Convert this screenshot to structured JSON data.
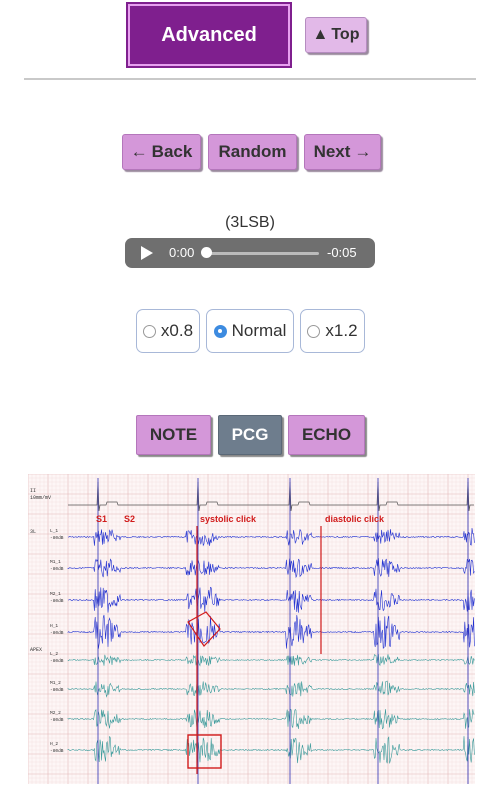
{
  "header": {
    "advanced_label": "Advanced",
    "top_label": "Top",
    "top_icon": "triangle-up-icon"
  },
  "nav": {
    "back_label": "Back",
    "random_label": "Random",
    "next_label": "Next"
  },
  "track": {
    "label": "(3LSB)",
    "time_current": "0:00",
    "time_remaining": "-0:05"
  },
  "speed": {
    "options": [
      "x0.8",
      "Normal",
      "x1.2"
    ],
    "selected": "Normal"
  },
  "tabs": [
    "NOTE",
    "PCG",
    "ECHO"
  ],
  "pcg": {
    "ecg_scale": [
      "II",
      "10mm/mV"
    ],
    "group_labels": [
      "3L",
      "APEX"
    ],
    "channels": [
      {
        "name": "L_1",
        "gain": "-80dB"
      },
      {
        "name": "M1_1",
        "gain": "-80dB"
      },
      {
        "name": "M2_1",
        "gain": "-80dB"
      },
      {
        "name": "H_1",
        "gain": "-80dB"
      },
      {
        "name": "L_2",
        "gain": "-80dB"
      },
      {
        "name": "M1_2",
        "gain": "-80dB"
      },
      {
        "name": "M2_2",
        "gain": "-80dB"
      },
      {
        "name": "H_2",
        "gain": "-80dB"
      }
    ],
    "annotations": [
      "S1",
      "S2",
      "systolic click",
      "diastolic click"
    ],
    "colors": {
      "upper_trace": "#1f2fd0",
      "lower_trace": "#3a9a9a",
      "annotation": "#d11b1b",
      "grid": "#e6c8c8"
    }
  }
}
